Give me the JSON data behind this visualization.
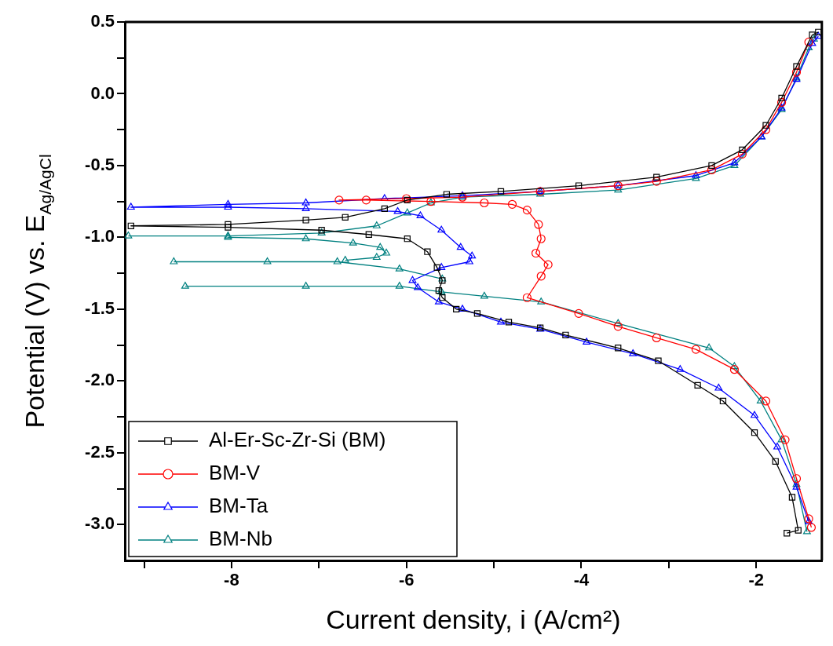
{
  "chart_data": {
    "type": "line",
    "xlabel": "Current density, i (A/cm²)",
    "ylabel": "Potential (V) vs. E$_{Ag/AgCl}$",
    "xlim": [
      -9.22,
      -1.25
    ],
    "ylim": [
      -3.25,
      0.5
    ],
    "xticks": [
      {
        "value": -9,
        "label": null
      },
      -8,
      {
        "value": -7,
        "label": null
      },
      -6,
      {
        "value": -5,
        "label": null
      },
      -4,
      {
        "value": -3,
        "label": null
      },
      -2
    ],
    "yticks": [
      {
        "value": -3,
        "label": "-3.0"
      },
      {
        "value": -2.75,
        "label": null
      },
      -2.5,
      {
        "value": -2.25,
        "label": null
      },
      {
        "value": -2,
        "label": "-2.0"
      },
      {
        "value": -1.75,
        "label": null
      },
      -1.5,
      {
        "value": -1.25,
        "label": null
      },
      {
        "value": -1,
        "label": "-1.0"
      },
      {
        "value": -0.75,
        "label": null
      },
      -0.5,
      {
        "value": -0.25,
        "label": null
      },
      {
        "value": 0,
        "label": "0.0"
      },
      {
        "value": 0.25,
        "label": null
      },
      0.5
    ],
    "legend": "bottom left",
    "line_style": "solid",
    "series": [
      {
        "name": "Al-Er-Sc-Zr-Si (BM)",
        "color": "#000000",
        "marker": "square",
        "x": [
          -1.65,
          -1.52,
          -1.59,
          -1.78,
          -2.02,
          -2.38,
          -2.67,
          -3.12,
          -3.58,
          -4.18,
          -4.47,
          -4.83,
          -5.19,
          -5.43,
          -5.59,
          -5.63,
          -5.59,
          -5.65,
          -5.76,
          -5.99,
          -6.43,
          -6.97,
          -8.04,
          -9.15,
          -8.04,
          -7.15,
          -6.7,
          -6.25,
          -5.99,
          -5.54,
          -4.92,
          -4.03,
          -3.14,
          -2.51,
          -2.16,
          -1.89,
          -1.71,
          -1.54,
          -1.36,
          -1.29
        ],
        "values": [
          -3.06,
          -3.04,
          -2.81,
          -2.56,
          -2.36,
          -2.14,
          -2.03,
          -1.86,
          -1.77,
          -1.68,
          -1.63,
          -1.59,
          -1.53,
          -1.5,
          -1.42,
          -1.37,
          -1.3,
          -1.21,
          -1.1,
          -1.01,
          -0.98,
          -0.95,
          -0.93,
          -0.92,
          -0.91,
          -0.88,
          -0.86,
          -0.8,
          -0.74,
          -0.7,
          -0.68,
          -0.64,
          -0.58,
          -0.5,
          -0.39,
          -0.22,
          -0.03,
          0.19,
          0.41,
          0.43
        ]
      },
      {
        "name": "BM-V",
        "color": "#ff0000",
        "marker": "circle",
        "x": [
          -1.37,
          -1.4,
          -1.54,
          -1.67,
          -1.89,
          -2.25,
          -2.69,
          -3.14,
          -3.58,
          -4.03,
          -4.62,
          -4.46,
          -4.38,
          -4.52,
          -4.46,
          -4.49,
          -4.62,
          -4.79,
          -5.11,
          -5.72,
          -6.46,
          -6.77,
          -6.0,
          -5.36,
          -4.47,
          -3.58,
          -3.14,
          -2.51,
          -2.16,
          -1.89,
          -1.71,
          -1.54,
          -1.4
        ],
        "values": [
          -3.02,
          -2.96,
          -2.68,
          -2.41,
          -2.14,
          -1.92,
          -1.78,
          -1.7,
          -1.62,
          -1.53,
          -1.42,
          -1.27,
          -1.19,
          -1.11,
          -1.01,
          -0.91,
          -0.81,
          -0.77,
          -0.76,
          -0.75,
          -0.74,
          -0.74,
          -0.73,
          -0.72,
          -0.68,
          -0.64,
          -0.61,
          -0.53,
          -0.42,
          -0.25,
          -0.06,
          0.15,
          0.36
        ]
      },
      {
        "name": "BM-Ta",
        "color": "#0000ff",
        "marker": "triangle",
        "x": [
          -1.4,
          -1.54,
          -1.76,
          -2.02,
          -2.43,
          -2.87,
          -3.41,
          -3.94,
          -4.47,
          -4.92,
          -5.36,
          -5.63,
          -5.87,
          -5.93,
          -5.6,
          -5.28,
          -5.25,
          -5.38,
          -5.6,
          -5.84,
          -6.1,
          -7.15,
          -8.04,
          -9.15,
          -8.04,
          -7.15,
          -6.25,
          -5.36,
          -4.47,
          -3.58,
          -2.69,
          -2.25,
          -1.94,
          -1.71,
          -1.54,
          -1.36,
          -1.29
        ],
        "values": [
          -2.98,
          -2.74,
          -2.46,
          -2.24,
          -2.05,
          -1.92,
          -1.81,
          -1.73,
          -1.64,
          -1.59,
          -1.5,
          -1.45,
          -1.35,
          -1.3,
          -1.21,
          -1.17,
          -1.13,
          -1.07,
          -0.95,
          -0.85,
          -0.82,
          -0.8,
          -0.79,
          -0.79,
          -0.77,
          -0.76,
          -0.73,
          -0.71,
          -0.68,
          -0.64,
          -0.57,
          -0.48,
          -0.3,
          -0.1,
          0.1,
          0.35,
          0.4
        ]
      },
      {
        "name": "BM-Nb",
        "color": "#008080",
        "marker": "triangle",
        "x": [
          -1.42,
          -1.54,
          -1.71,
          -1.95,
          -2.25,
          -2.54,
          -3.58,
          -4.46,
          -5.11,
          -5.6,
          -6.08,
          -7.15,
          -8.53,
          null,
          -8.66,
          -7.59,
          -6.79,
          -6.08,
          -5.59,
          null,
          -8.04,
          -7.15,
          -6.61,
          -6.3,
          -6.23,
          -6.34,
          -6.7,
          null,
          -9.18,
          -8.04,
          -6.97,
          -6.34,
          -5.99,
          -5.72,
          -5.36,
          -4.47,
          -3.58,
          -2.69,
          -2.25,
          -1.94,
          -1.71,
          -1.54,
          -1.4,
          -1.34
        ],
        "values": [
          -3.05,
          -2.72,
          -2.41,
          -2.14,
          -1.9,
          -1.77,
          -1.6,
          -1.45,
          -1.41,
          -1.38,
          -1.34,
          -1.34,
          -1.34,
          null,
          -1.17,
          -1.17,
          -1.17,
          -1.22,
          -1.29,
          null,
          -1.0,
          -1.01,
          -1.04,
          -1.07,
          -1.11,
          -1.14,
          -1.16,
          null,
          -0.99,
          -0.99,
          -0.97,
          -0.92,
          -0.83,
          -0.76,
          -0.72,
          -0.7,
          -0.67,
          -0.59,
          -0.5,
          -0.3,
          -0.11,
          0.11,
          0.32,
          0.38
        ]
      }
    ]
  }
}
